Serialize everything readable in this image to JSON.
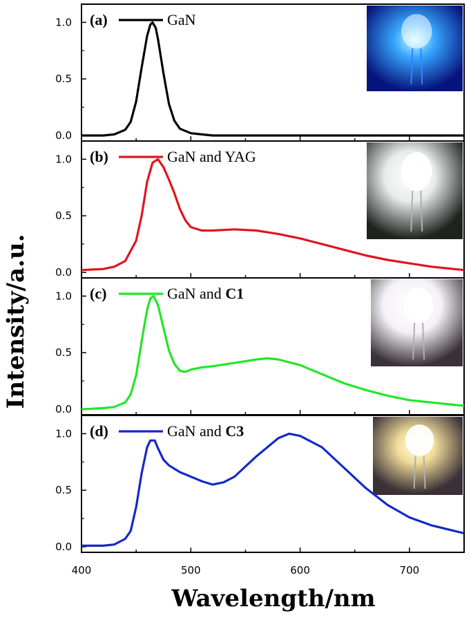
{
  "chart_data": {
    "type": "line",
    "xlabel": "Wavelength/nm",
    "ylabel": "Intensity/a.u.",
    "xlim": [
      400,
      750
    ],
    "x_ticks": [
      "400",
      "500",
      "600",
      "700"
    ],
    "ylim": [
      0,
      1.1
    ],
    "y_ticks": [
      "0.0",
      "0.5",
      "1.0"
    ],
    "panels": [
      {
        "tag": "(a)",
        "legend": "GaN",
        "legend_bold_part": "",
        "color": "#000000",
        "photo": "blue-led-photo",
        "series": [
          {
            "name": "GaN",
            "x": [
              400,
              420,
              430,
              440,
              445,
              450,
              455,
              460,
              463,
              465,
              468,
              470,
              475,
              480,
              485,
              490,
              500,
              510,
              520,
              540,
              560,
              600,
              700,
              750
            ],
            "y": [
              0,
              0,
              0.01,
              0.05,
              0.12,
              0.3,
              0.6,
              0.88,
              0.98,
              1.0,
              0.95,
              0.85,
              0.55,
              0.28,
              0.13,
              0.06,
              0.02,
              0.01,
              0,
              0,
              0,
              0,
              0,
              0
            ]
          }
        ]
      },
      {
        "tag": "(b)",
        "legend": "GaN and YAG",
        "legend_bold_part": "",
        "color": "#e0141e",
        "photo": "white-led-photo",
        "series": [
          {
            "name": "GaN and YAG",
            "x": [
              400,
              420,
              430,
              440,
              450,
              455,
              460,
              465,
              470,
              475,
              480,
              485,
              490,
              495,
              500,
              510,
              520,
              540,
              560,
              580,
              600,
              620,
              640,
              660,
              680,
              700,
              720,
              750
            ],
            "y": [
              0.02,
              0.03,
              0.05,
              0.1,
              0.28,
              0.5,
              0.8,
              0.97,
              1.0,
              0.93,
              0.82,
              0.7,
              0.56,
              0.46,
              0.4,
              0.37,
              0.37,
              0.38,
              0.37,
              0.34,
              0.3,
              0.25,
              0.2,
              0.15,
              0.11,
              0.08,
              0.05,
              0.02
            ]
          }
        ]
      },
      {
        "tag": "(c)",
        "legend": "GaN and ",
        "legend_bold_part": "C1",
        "color": "#22e628",
        "photo": "white-led-photo-c1",
        "series": [
          {
            "name": "GaN and C1",
            "x": [
              400,
              420,
              430,
              440,
              445,
              450,
              455,
              460,
              463,
              466,
              470,
              475,
              480,
              485,
              490,
              495,
              500,
              510,
              520,
              540,
              560,
              570,
              580,
              600,
              620,
              640,
              660,
              680,
              700,
              720,
              750
            ],
            "y": [
              0,
              0.01,
              0.02,
              0.06,
              0.13,
              0.3,
              0.6,
              0.88,
              0.98,
              1.0,
              0.92,
              0.72,
              0.52,
              0.4,
              0.34,
              0.33,
              0.35,
              0.37,
              0.38,
              0.41,
              0.44,
              0.45,
              0.44,
              0.39,
              0.31,
              0.23,
              0.17,
              0.12,
              0.08,
              0.06,
              0.03
            ]
          }
        ]
      },
      {
        "tag": "(d)",
        "legend": "GaN and ",
        "legend_bold_part": "C3",
        "color": "#1428c8",
        "photo": "warm-white-led-photo",
        "series": [
          {
            "name": "GaN and C3",
            "x": [
              400,
              420,
              430,
              440,
              445,
              450,
              455,
              460,
              463,
              467,
              470,
              475,
              480,
              490,
              500,
              505,
              510,
              520,
              530,
              540,
              560,
              580,
              590,
              600,
              620,
              640,
              660,
              680,
              700,
              720,
              750
            ],
            "y": [
              0.01,
              0.01,
              0.02,
              0.07,
              0.14,
              0.35,
              0.65,
              0.88,
              0.94,
              0.94,
              0.87,
              0.77,
              0.72,
              0.66,
              0.62,
              0.6,
              0.58,
              0.55,
              0.57,
              0.62,
              0.8,
              0.96,
              1.0,
              0.98,
              0.88,
              0.7,
              0.52,
              0.37,
              0.26,
              0.19,
              0.12
            ]
          }
        ]
      }
    ]
  }
}
